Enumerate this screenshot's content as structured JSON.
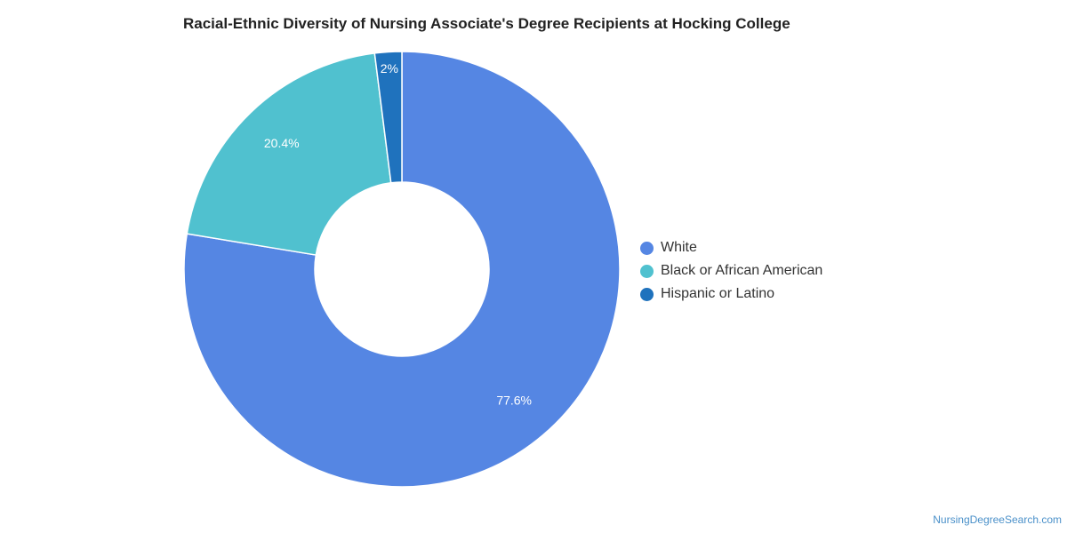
{
  "chart_data": {
    "type": "pie",
    "title": "Racial-Ethnic Diversity of Nursing Associate's Degree Recipients at Hocking College",
    "slices": [
      {
        "label": "White",
        "value": 77.6,
        "value_label": "77.6%",
        "color": "#5586e3"
      },
      {
        "label": "Black or African American",
        "value": 20.4,
        "value_label": "20.4%",
        "color": "#50c1cf"
      },
      {
        "label": "Hispanic or Latino",
        "value": 2,
        "value_label": "2%",
        "color": "#1f72bd"
      }
    ],
    "legend_position": "right",
    "donut": true
  },
  "credit": "NursingDegreeSearch.com"
}
